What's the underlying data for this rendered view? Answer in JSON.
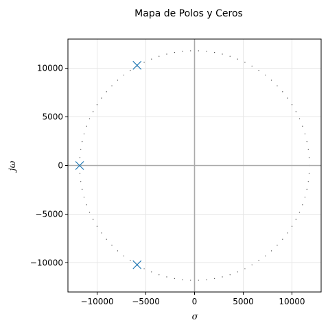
{
  "chart_data": {
    "type": "scatter",
    "title": "Mapa de Polos y Ceros",
    "xlabel": "σ",
    "ylabel": "jω",
    "xlim": [
      -13000,
      13000
    ],
    "ylim": [
      -13000,
      13000
    ],
    "x_ticks": [
      -10000,
      -5000,
      0,
      5000,
      10000
    ],
    "x_tick_labels": [
      "−10000",
      "−5000",
      "0",
      "5000",
      "10000"
    ],
    "y_ticks": [
      -10000,
      -5000,
      0,
      5000,
      10000
    ],
    "y_tick_labels": [
      "−10000",
      "−5000",
      "0",
      "5000",
      "10000"
    ],
    "grid": true,
    "poles": {
      "marker": "x",
      "color": "#1f77b4",
      "points": [
        {
          "x": -5900,
          "y": 10300
        },
        {
          "x": -11800,
          "y": 0
        },
        {
          "x": -5900,
          "y": -10200
        }
      ]
    },
    "unit_circle": {
      "radius": 11800,
      "style": "dotted",
      "color": "#555555"
    },
    "axis_line_color": "#aaaaaa"
  }
}
